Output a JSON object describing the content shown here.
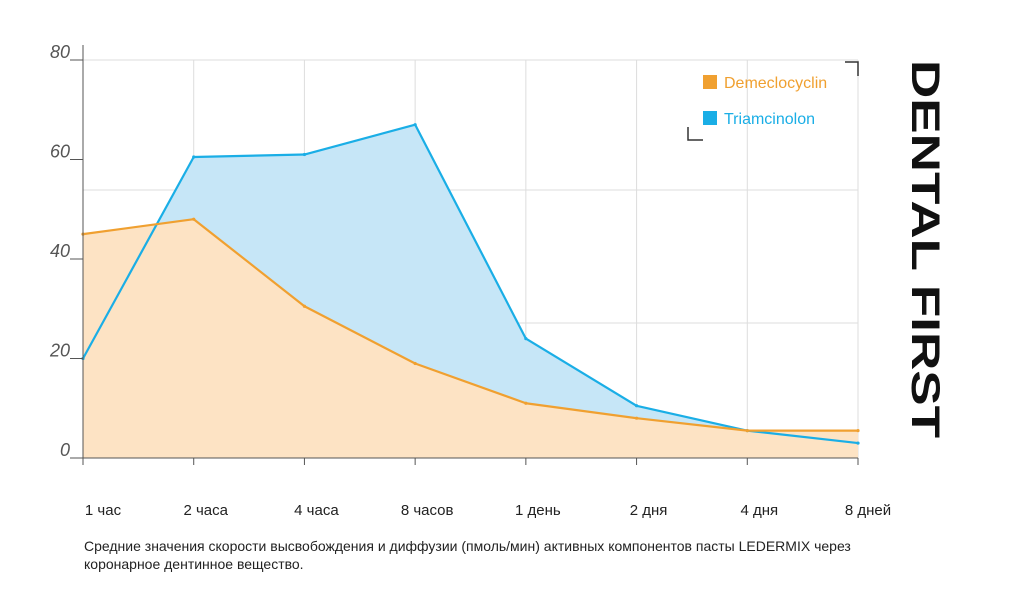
{
  "chart_data": {
    "type": "area",
    "categories": [
      "1 час",
      "2 часа",
      "4 часа",
      "8 часов",
      "1 день",
      "2 дня",
      "4 дня",
      "8 дней"
    ],
    "series": [
      {
        "name": "Demeclocyclin",
        "color": "#f0a030",
        "fill": "#fde3c4",
        "values": [
          45,
          48,
          30.5,
          19,
          11,
          8,
          5.5,
          5.5
        ]
      },
      {
        "name": "Triamcinolon",
        "color": "#1aaee6",
        "fill": "#c6e6f7",
        "values": [
          20,
          60.5,
          61,
          67,
          24,
          10.5,
          5.5,
          3
        ]
      }
    ],
    "y_ticks": [
      "0",
      "20",
      "40",
      "60",
      "80"
    ],
    "ylim": [
      0,
      80
    ],
    "grid": true,
    "legend_position": "top-right",
    "title": "",
    "xlabel": "",
    "ylabel": ""
  },
  "caption": "Средние значения скорости высвобождения и диффузии (пмоль/мин) активных компонентов пасты LEDERMIX через коронарное дентинное вещество.",
  "brand": "DENTAL FIRST"
}
